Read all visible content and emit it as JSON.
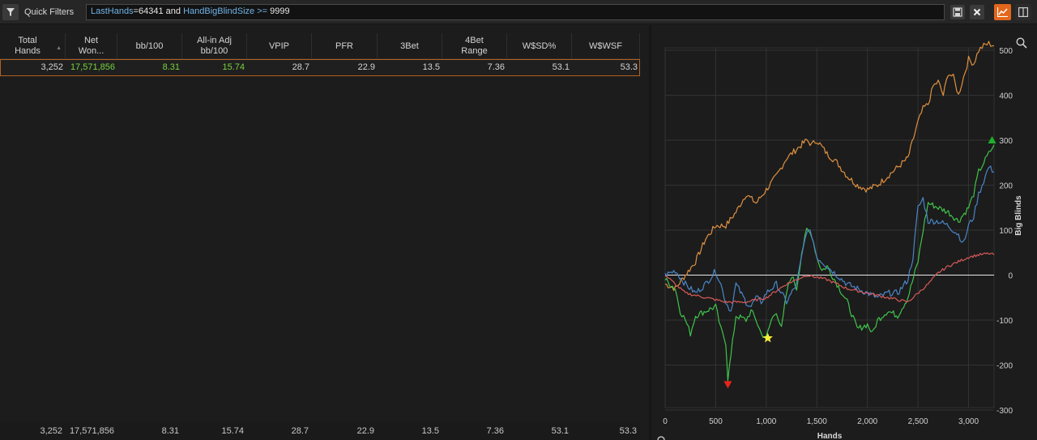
{
  "filter_bar": {
    "label": "Quick Filters",
    "query_tokens": [
      {
        "text": "LastHands",
        "kind": "key"
      },
      {
        "text": "=64341 and ",
        "kind": "text"
      },
      {
        "text": "HandBigBlindSize",
        "kind": "key"
      },
      {
        "text": " >= ",
        "kind": "key"
      },
      {
        "text": "9999",
        "kind": "text"
      }
    ]
  },
  "table": {
    "columns": [
      {
        "line1": "Total",
        "line2": "Hands"
      },
      {
        "line1": "Net",
        "line2": "Won..."
      },
      {
        "line1": "bb/100",
        "line2": ""
      },
      {
        "line1": "All-in Adj",
        "line2": "bb/100"
      },
      {
        "line1": "VPIP",
        "line2": ""
      },
      {
        "line1": "PFR",
        "line2": ""
      },
      {
        "line1": "3Bet",
        "line2": ""
      },
      {
        "line1": "4Bet",
        "line2": "Range"
      },
      {
        "line1": "W$SD%",
        "line2": ""
      },
      {
        "line1": "W$WSF",
        "line2": ""
      }
    ],
    "row": [
      "3,252",
      "17,571,856",
      "8.31",
      "15.74",
      "28.7",
      "22.9",
      "13.5",
      "7.36",
      "53.1",
      "53.3"
    ],
    "totals": [
      "3,252",
      "17,571,856",
      "8.31",
      "15.74",
      "28.7",
      "22.9",
      "13.5",
      "7.36",
      "53.1",
      "53.3"
    ]
  },
  "chart_data": {
    "type": "line",
    "xlabel": "Hands",
    "ylabel": "Big Blinds",
    "xlim": [
      0,
      3252
    ],
    "ylim": [
      -300,
      500
    ],
    "x_ticks": [
      "0",
      "500",
      "1,000",
      "1,500",
      "2,000",
      "2,500",
      "3,000"
    ],
    "y_ticks": [
      "500",
      "400",
      "300",
      "200",
      "100",
      "0",
      "-100",
      "-200",
      "-300"
    ],
    "grid": true,
    "colors": {
      "orange": "#e0913f",
      "green": "#3fc34a",
      "blue": "#4a86c8",
      "red": "#d85a5a"
    },
    "series": [
      {
        "color": "#e0913f",
        "x": [
          0,
          100,
          200,
          300,
          400,
          500,
          600,
          700,
          800,
          900,
          1000,
          1100,
          1200,
          1300,
          1400,
          1450,
          1500,
          1600,
          1700,
          1800,
          1900,
          2000,
          2100,
          2200,
          2300,
          2400,
          2500,
          2550,
          2600,
          2650,
          2700,
          2750,
          2800,
          2850,
          2900,
          2950,
          3000,
          3050,
          3100,
          3150,
          3200,
          3252
        ],
        "y": [
          -20,
          -30,
          0,
          30,
          80,
          110,
          110,
          140,
          180,
          160,
          190,
          220,
          260,
          280,
          300,
          290,
          300,
          270,
          250,
          220,
          200,
          190,
          200,
          220,
          240,
          260,
          340,
          370,
          380,
          420,
          430,
          400,
          450,
          440,
          400,
          440,
          480,
          470,
          500,
          510,
          515,
          510
        ]
      },
      {
        "color": "#3fc34a",
        "x": [
          0,
          100,
          150,
          200,
          250,
          300,
          400,
          500,
          550,
          600,
          620,
          650,
          700,
          800,
          850,
          900,
          950,
          1000,
          1050,
          1100,
          1150,
          1200,
          1250,
          1300,
          1350,
          1400,
          1450,
          1500,
          1550,
          1600,
          1700,
          1800,
          1900,
          2000,
          2050,
          2100,
          2200,
          2300,
          2400,
          2500,
          2550,
          2600,
          2700,
          2800,
          2900,
          3000,
          3050,
          3100,
          3150,
          3200,
          3252
        ],
        "y": [
          -10,
          -30,
          -80,
          -100,
          -130,
          -90,
          -80,
          -70,
          -120,
          -150,
          -230,
          -180,
          -90,
          -100,
          -80,
          -100,
          -130,
          -140,
          -100,
          -80,
          -120,
          -40,
          0,
          -30,
          50,
          100,
          90,
          40,
          10,
          20,
          -20,
          -60,
          -120,
          -110,
          -130,
          -100,
          -80,
          -90,
          -50,
          30,
          100,
          160,
          150,
          140,
          120,
          150,
          180,
          230,
          250,
          270,
          290
        ]
      },
      {
        "color": "#4a86c8",
        "x": [
          0,
          100,
          200,
          300,
          400,
          500,
          550,
          600,
          650,
          700,
          800,
          850,
          900,
          950,
          1000,
          1100,
          1200,
          1300,
          1350,
          1400,
          1450,
          1500,
          1600,
          1700,
          1800,
          1900,
          2000,
          2100,
          2200,
          2300,
          2400,
          2450,
          2500,
          2550,
          2600,
          2700,
          2800,
          2900,
          2950,
          3000,
          3050,
          3100,
          3150,
          3200,
          3252
        ],
        "y": [
          0,
          10,
          -20,
          -40,
          -20,
          10,
          -20,
          -60,
          -80,
          -20,
          -60,
          -70,
          -50,
          -60,
          -40,
          -20,
          -60,
          -20,
          40,
          100,
          90,
          40,
          20,
          0,
          -20,
          -30,
          -40,
          -50,
          -40,
          -40,
          -10,
          40,
          150,
          170,
          120,
          120,
          110,
          90,
          70,
          110,
          130,
          180,
          210,
          240,
          230
        ]
      },
      {
        "color": "#d85a5a",
        "x": [
          0,
          200,
          400,
          600,
          800,
          1000,
          1200,
          1400,
          1600,
          1800,
          2000,
          2200,
          2400,
          2600,
          2700,
          2800,
          2900,
          3000,
          3100,
          3200,
          3252
        ],
        "y": [
          0,
          -40,
          -50,
          -60,
          -60,
          -50,
          -20,
          0,
          -10,
          -30,
          -40,
          -50,
          -60,
          -20,
          5,
          20,
          30,
          40,
          45,
          48,
          45
        ]
      }
    ],
    "markers": [
      {
        "shape": "triangle-down",
        "x": 620,
        "y": -243,
        "color": "#e8241c"
      },
      {
        "shape": "star",
        "x": 1015,
        "y": -140,
        "color": "#f7ed3a"
      },
      {
        "shape": "triangle-up",
        "x": 3232,
        "y": 300,
        "color": "#1eb02a"
      }
    ]
  }
}
